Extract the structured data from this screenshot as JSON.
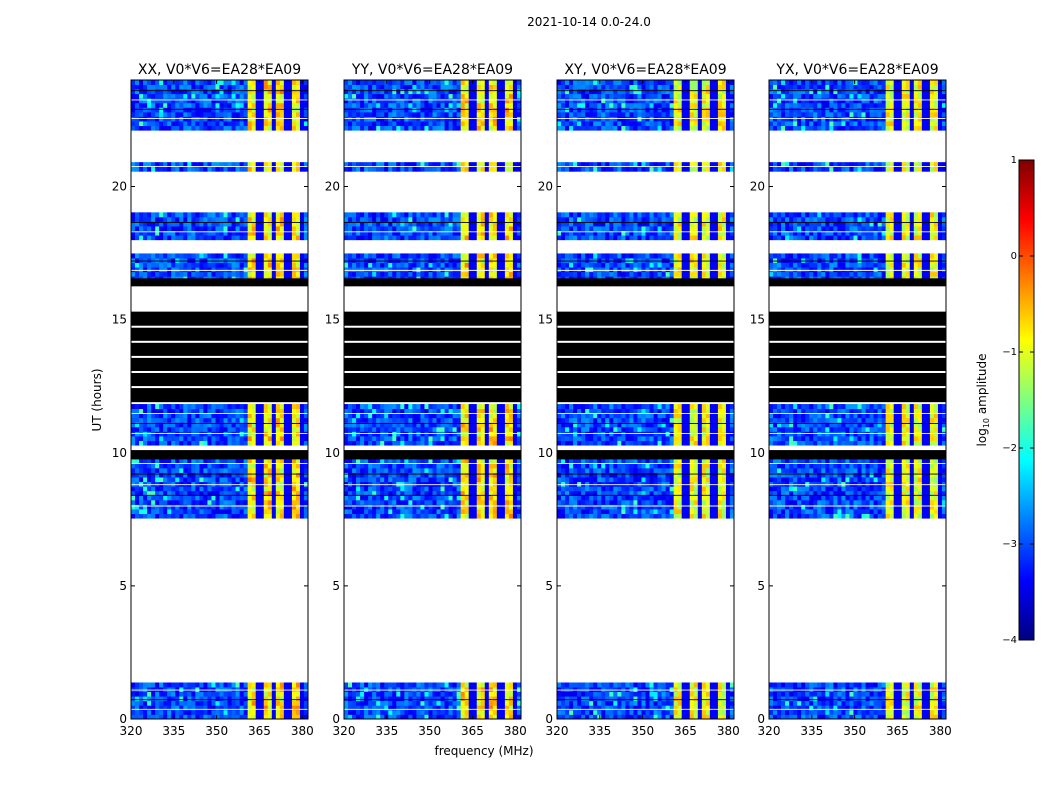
{
  "suptitle": "2021-10-14 0.0-24.0",
  "chart_data": {
    "type": "heatmap",
    "ylabel": "UT (hours)",
    "xlabel": "frequency (MHz)",
    "xlim": [
      320,
      382
    ],
    "ylim": [
      0,
      24
    ],
    "x_ticks": [
      320,
      335,
      350,
      365,
      380
    ],
    "y_ticks": [
      0,
      5,
      10,
      15,
      20
    ],
    "panels": [
      {
        "title": "XX, V0*V6=EA28*EA09",
        "rfi_level": "high"
      },
      {
        "title": "YY, V0*V6=EA28*EA09",
        "rfi_level": "high"
      },
      {
        "title": "XY, V0*V6=EA28*EA09",
        "rfi_level": "medium"
      },
      {
        "title": "YX, V0*V6=EA28*EA09",
        "rfi_level": "medium"
      }
    ],
    "data_blocks_hours": [
      [
        0.0,
        1.45
      ],
      [
        7.6,
        10.0
      ],
      [
        10.35,
        11.85
      ],
      [
        16.5,
        17.55
      ],
      [
        17.95,
        19.0
      ],
      [
        20.6,
        20.9
      ],
      [
        22.2,
        23.95
      ]
    ],
    "flagged_black_blocks_hours": [
      [
        9.75,
        10.1
      ],
      [
        11.9,
        15.3
      ],
      [
        16.25,
        16.55
      ]
    ],
    "rfi_band_mhz": [
      361,
      380.5
    ],
    "rfi_stripe_centers_mhz": [
      365,
      370,
      375,
      379.5
    ],
    "colorbar": {
      "label_main": "log",
      "label_sub": "10",
      "label_rest": " amplitude",
      "range": [
        -4,
        1
      ],
      "ticks": [
        {
          "value": 1,
          "label": "1"
        },
        {
          "value": 0,
          "label": "0"
        },
        {
          "value": -1,
          "label": "−1"
        },
        {
          "value": -2,
          "label": "−2"
        },
        {
          "value": -3,
          "label": "−3"
        },
        {
          "value": -4,
          "label": "−4"
        }
      ],
      "colors": [
        "#00007f",
        "#0000ff",
        "#007fff",
        "#00ffff",
        "#7fff7f",
        "#ffff00",
        "#ff7f00",
        "#ff0000",
        "#7f0000"
      ]
    }
  }
}
